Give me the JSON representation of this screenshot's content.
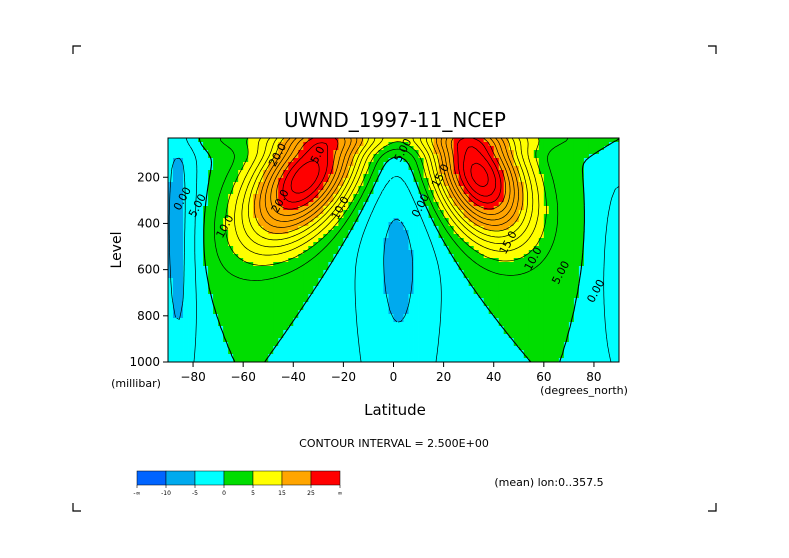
{
  "chart_data": {
    "type": "heatmap",
    "subtype": "filled-contour",
    "title": "UWND_1997-11_NCEP",
    "xlabel": "Latitude",
    "ylabel": "Level",
    "x_unit": "(degrees_north)",
    "y_unit": "(millibar)",
    "xlim": [
      -90,
      90
    ],
    "ylim": [
      1000,
      30
    ],
    "y_inverted": true,
    "x_ticks": [
      -80,
      -60,
      -40,
      -20,
      0,
      20,
      40,
      60,
      80
    ],
    "y_ticks": [
      200,
      400,
      600,
      800,
      1000
    ],
    "contour_interval_text": "CONTOUR INTERVAL = 2.500E+00",
    "contour_interval": 2.5,
    "footnote": "(mean) lon:0..357.5",
    "colorbar": {
      "labels": [
        "-∞",
        "-10",
        "-5",
        "0",
        "5",
        "15",
        "25",
        "∞"
      ],
      "colors": [
        "#0064ff",
        "#00aaee",
        "#00ffff",
        "#00dd00",
        "#ffff00",
        "#ffa500",
        "#ff0000"
      ],
      "bounds": [
        -15,
        -10,
        -5,
        0,
        5,
        15,
        25,
        35
      ]
    },
    "contour_labels": [
      {
        "text": "20.0",
        "lat": -45,
        "p": 110
      },
      {
        "text": "20.0",
        "lat": -44,
        "p": 310
      },
      {
        "text": "5.00",
        "lat": -77,
        "p": 330
      },
      {
        "text": "0.00",
        "lat": -83,
        "p": 300
      },
      {
        "text": "10.0",
        "lat": -66,
        "p": 420
      },
      {
        "text": "10.0",
        "lat": -20,
        "p": 340
      },
      {
        "text": "5.0",
        "lat": -29,
        "p": 110
      },
      {
        "text": "5.00",
        "lat": 5,
        "p": 90
      },
      {
        "text": "0.00",
        "lat": 12,
        "p": 330
      },
      {
        "text": "15.0",
        "lat": 20,
        "p": 200
      },
      {
        "text": "15.0",
        "lat": 47,
        "p": 490
      },
      {
        "text": "10.0",
        "lat": 57,
        "p": 560
      },
      {
        "text": "5.00",
        "lat": 68,
        "p": 620
      },
      {
        "text": "0.00",
        "lat": 82,
        "p": 700
      }
    ],
    "jets": [
      {
        "name": "southern-jet",
        "lat": -35,
        "p": 200,
        "max": 32
      },
      {
        "name": "northern-jet",
        "lat": 34,
        "p": 190,
        "max": 34
      }
    ],
    "grid": false
  }
}
